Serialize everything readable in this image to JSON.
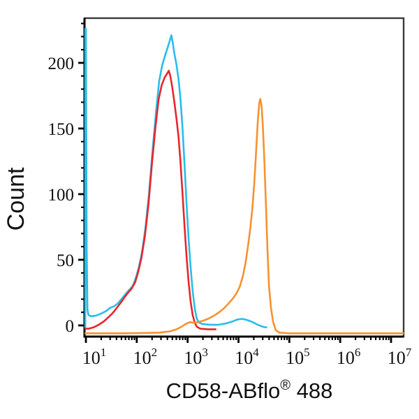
{
  "figure": {
    "y_axis_title": "Count",
    "x_axis_title_main": "CD58-ABflo",
    "x_axis_title_sup": "®",
    "x_axis_title_suffix": " 488",
    "x_tick_base": "10"
  },
  "colors": {
    "cyan_curve": "#29BDE9",
    "red_curve": "#E8262D",
    "orange_curve": "#F6922E",
    "frame": "#3a3a3a",
    "axis": "#000000",
    "text": "#111111",
    "background": "#ffffff"
  },
  "chart_data": {
    "type": "line",
    "subtype": "flow-cytometry-overlay-histogram",
    "title": "",
    "xlabel": "CD58-ABflo® 488",
    "ylabel": "Count",
    "x_scale": "log10",
    "x_ticks_exponents": [
      1,
      2,
      3,
      4,
      5,
      6,
      7
    ],
    "x_range_log10": [
      0.987,
      7.24
    ],
    "y_ticks": [
      0,
      50,
      100,
      150,
      200
    ],
    "y_minor_ticks": [
      10,
      20,
      30,
      40,
      60,
      70,
      80,
      90,
      110,
      120,
      130,
      140,
      160,
      170,
      180,
      190,
      210,
      220,
      230
    ],
    "ylim": [
      -8,
      234
    ],
    "grid": false,
    "legend_position": "none",
    "series": [
      {
        "name": "cyan",
        "color": "#29BDE9",
        "peak": {
          "log10_x": 2.68,
          "count": 221
        },
        "points": [
          [
            0.987,
            -1.5
          ],
          [
            0.987,
            226
          ],
          [
            1.0,
            226
          ],
          [
            1.015,
            60
          ],
          [
            1.03,
            12
          ],
          [
            1.05,
            8
          ],
          [
            1.1,
            7
          ],
          [
            1.2,
            7.5
          ],
          [
            1.3,
            9
          ],
          [
            1.4,
            11
          ],
          [
            1.48,
            13.5
          ],
          [
            1.55,
            14.5
          ],
          [
            1.62,
            16.5
          ],
          [
            1.7,
            20
          ],
          [
            1.78,
            24
          ],
          [
            1.85,
            27
          ],
          [
            1.92,
            30
          ],
          [
            1.98,
            36
          ],
          [
            2.04,
            44
          ],
          [
            2.1,
            55
          ],
          [
            2.17,
            74
          ],
          [
            2.24,
            100
          ],
          [
            2.31,
            133
          ],
          [
            2.38,
            163
          ],
          [
            2.44,
            186
          ],
          [
            2.5,
            198
          ],
          [
            2.56,
            206
          ],
          [
            2.61,
            212
          ],
          [
            2.65,
            217
          ],
          [
            2.68,
            221
          ],
          [
            2.71,
            215
          ],
          [
            2.74,
            207
          ],
          [
            2.78,
            199
          ],
          [
            2.82,
            188
          ],
          [
            2.86,
            172
          ],
          [
            2.9,
            150
          ],
          [
            2.94,
            122
          ],
          [
            2.98,
            92
          ],
          [
            3.02,
            66
          ],
          [
            3.06,
            44
          ],
          [
            3.1,
            26
          ],
          [
            3.14,
            13
          ],
          [
            3.18,
            5
          ],
          [
            3.23,
            2
          ],
          [
            3.3,
            1
          ],
          [
            3.45,
            0.5
          ],
          [
            3.6,
            0.5
          ],
          [
            3.75,
            1.5
          ],
          [
            3.88,
            3
          ],
          [
            3.98,
            4.5
          ],
          [
            4.08,
            5
          ],
          [
            4.18,
            4
          ],
          [
            4.28,
            2.5
          ],
          [
            4.38,
            0.5
          ],
          [
            4.48,
            -1
          ],
          [
            4.55,
            -1.5
          ]
        ]
      },
      {
        "name": "red",
        "color": "#E8262D",
        "peak": {
          "log10_x": 2.63,
          "count": 194
        },
        "points": [
          [
            0.987,
            -2.5
          ],
          [
            1.05,
            -2.5
          ],
          [
            1.15,
            -1.5
          ],
          [
            1.25,
            0.5
          ],
          [
            1.35,
            3
          ],
          [
            1.45,
            6.5
          ],
          [
            1.53,
            9.5
          ],
          [
            1.6,
            13
          ],
          [
            1.68,
            17
          ],
          [
            1.76,
            21.5
          ],
          [
            1.83,
            25
          ],
          [
            1.9,
            28
          ],
          [
            1.97,
            33
          ],
          [
            2.03,
            41
          ],
          [
            2.09,
            51
          ],
          [
            2.16,
            68
          ],
          [
            2.23,
            92
          ],
          [
            2.3,
            124
          ],
          [
            2.37,
            152
          ],
          [
            2.43,
            172
          ],
          [
            2.49,
            183
          ],
          [
            2.55,
            189
          ],
          [
            2.6,
            192
          ],
          [
            2.63,
            194
          ],
          [
            2.66,
            190
          ],
          [
            2.7,
            181
          ],
          [
            2.74,
            170
          ],
          [
            2.78,
            158
          ],
          [
            2.82,
            144
          ],
          [
            2.86,
            124
          ],
          [
            2.9,
            100
          ],
          [
            2.94,
            75
          ],
          [
            2.98,
            52
          ],
          [
            3.02,
            33
          ],
          [
            3.06,
            18
          ],
          [
            3.1,
            8
          ],
          [
            3.14,
            2
          ],
          [
            3.18,
            -1
          ],
          [
            3.25,
            -2.5
          ],
          [
            3.4,
            -3
          ],
          [
            3.55,
            -3
          ]
        ]
      },
      {
        "name": "orange",
        "color": "#F6922E",
        "peak": {
          "log10_x": 4.43,
          "count": 172.5
        },
        "points": [
          [
            0.987,
            -6
          ],
          [
            1.3,
            -6
          ],
          [
            1.7,
            -6
          ],
          [
            2.1,
            -5.8
          ],
          [
            2.45,
            -5.5
          ],
          [
            2.65,
            -4.5
          ],
          [
            2.78,
            -3
          ],
          [
            2.88,
            -1
          ],
          [
            2.96,
            1
          ],
          [
            3.04,
            2.5
          ],
          [
            3.12,
            2
          ],
          [
            3.2,
            2.5
          ],
          [
            3.3,
            3.5
          ],
          [
            3.4,
            5
          ],
          [
            3.5,
            7
          ],
          [
            3.6,
            9.5
          ],
          [
            3.7,
            12.5
          ],
          [
            3.8,
            16.5
          ],
          [
            3.9,
            21
          ],
          [
            3.97,
            25
          ],
          [
            4.03,
            30
          ],
          [
            4.09,
            38
          ],
          [
            4.14,
            48
          ],
          [
            4.19,
            61
          ],
          [
            4.23,
            73
          ],
          [
            4.27,
            88
          ],
          [
            4.31,
            108
          ],
          [
            4.35,
            135
          ],
          [
            4.38,
            156
          ],
          [
            4.41,
            170
          ],
          [
            4.43,
            172.5
          ],
          [
            4.455,
            167
          ],
          [
            4.48,
            152
          ],
          [
            4.51,
            125
          ],
          [
            4.54,
            92
          ],
          [
            4.57,
            58
          ],
          [
            4.6,
            30
          ],
          [
            4.64,
            13
          ],
          [
            4.68,
            3
          ],
          [
            4.73,
            -3.5
          ],
          [
            4.8,
            -5.5
          ],
          [
            5.0,
            -6
          ],
          [
            5.6,
            -6
          ],
          [
            6.3,
            -6
          ],
          [
            7.24,
            -6
          ]
        ]
      }
    ]
  }
}
